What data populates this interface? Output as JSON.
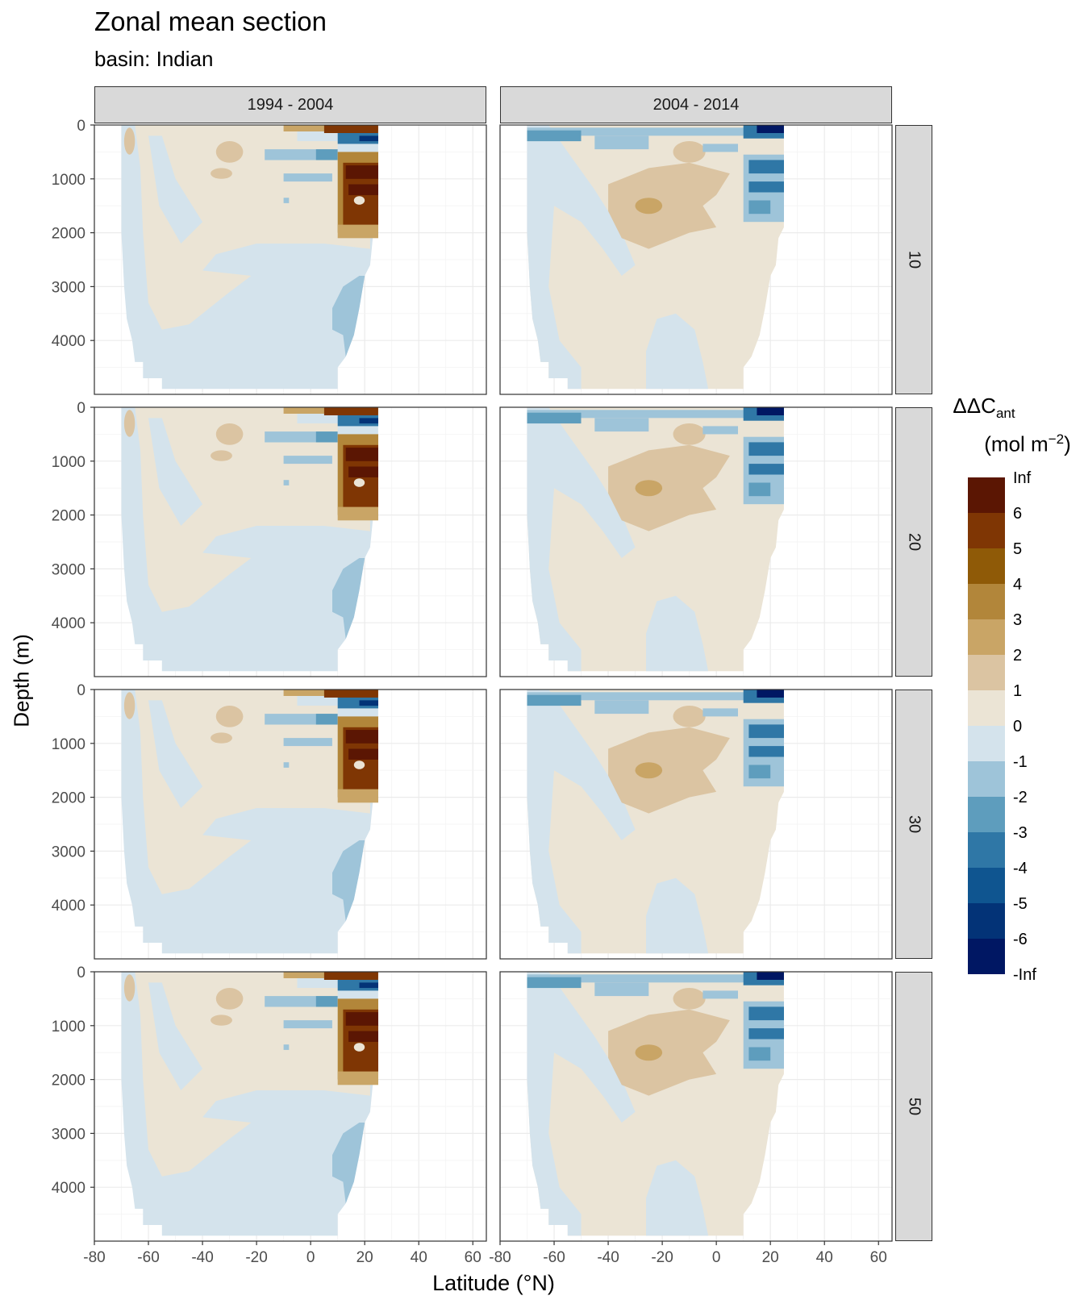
{
  "header": {
    "title": "Zonal mean section",
    "subtitle": "basin: Indian"
  },
  "axes": {
    "x_title": "Latitude (°N)",
    "y_title": "Depth (m)"
  },
  "legend": {
    "title_main": "ΔΔC",
    "title_sub": "ant",
    "unit_prefix": "(mol m",
    "unit_sup": "−2",
    "unit_suffix": ")",
    "colors": [
      "#5b1603",
      "#7f3604",
      "#8f5a07",
      "#b2863a",
      "#c9a566",
      "#dbc4a2",
      "#ebe4d5",
      "#d4e3ec",
      "#9ec4d9",
      "#5e9dbd",
      "#2f77a6",
      "#0f5590",
      "#033377",
      "#001763"
    ],
    "labels": [
      "Inf",
      "6",
      "5",
      "4",
      "3",
      "2",
      "1",
      "0",
      "-1",
      "-2",
      "-3",
      "-4",
      "-5",
      "-6",
      "-Inf"
    ]
  },
  "chart_data": {
    "type": "heatmap",
    "title": "Zonal mean section",
    "subtitle": "basin: Indian",
    "xlabel": "Latitude (°N)",
    "ylabel": "Depth (m)",
    "facets_columns": [
      "1994 - 2004",
      "2004 - 2014"
    ],
    "facets_rows": [
      "10",
      "20",
      "30",
      "50"
    ],
    "xlim": [
      -80,
      65
    ],
    "ylim": [
      5000,
      0
    ],
    "x_ticks": [
      -80,
      -60,
      -40,
      -20,
      0,
      20,
      40,
      60
    ],
    "y_ticks": [
      0,
      1000,
      2000,
      3000,
      4000
    ],
    "grid": true,
    "legend_position": "right",
    "legend_levels": [
      "Inf",
      "6",
      "5",
      "4",
      "3",
      "2",
      "1",
      "0",
      "-1",
      "-2",
      "-3",
      "-4",
      "-5",
      "-6",
      "-Inf"
    ],
    "approximate_field_regions": {
      "1994 - 2004": [
        {
          "lat": [
            -70,
            25
          ],
          "depth": [
            0,
            4900
          ],
          "value_range": "-1 to 0"
        },
        {
          "lat": [
            -65,
            -5
          ],
          "depth": [
            0,
            3500
          ],
          "value_range": "0 to 1"
        },
        {
          "lat": [
            -35,
            -20
          ],
          "depth": [
            300,
            800
          ],
          "value_range": "1 to 2"
        },
        {
          "lat": [
            -15,
            10
          ],
          "depth": [
            400,
            1500
          ],
          "value_range": "-2 to -1"
        },
        {
          "lat": [
            10,
            24
          ],
          "depth": [
            0,
            2000
          ],
          "value_range": "2 to Inf"
        },
        {
          "lat": [
            8,
            20
          ],
          "depth": [
            2800,
            4200
          ],
          "value_range": "-2 to -1"
        }
      ],
      "2004 - 2014": [
        {
          "lat": [
            -70,
            25
          ],
          "depth": [
            0,
            4900
          ],
          "value_range": "0 to 1"
        },
        {
          "lat": [
            -70,
            -40
          ],
          "depth": [
            0,
            4900
          ],
          "value_range": "-1 to 0"
        },
        {
          "lat": [
            -40,
            -5
          ],
          "depth": [
            1000,
            2300
          ],
          "value_range": "1 to 2"
        },
        {
          "lat": [
            -30,
            -20
          ],
          "depth": [
            1400,
            1800
          ],
          "value_range": "2 to 3"
        },
        {
          "lat": [
            10,
            24
          ],
          "depth": [
            0,
            1800
          ],
          "value_range": "-4 to -1"
        },
        {
          "lat": [
            -25,
            -5
          ],
          "depth": [
            3500,
            4900
          ],
          "value_range": "-1 to 0"
        }
      ]
    }
  }
}
